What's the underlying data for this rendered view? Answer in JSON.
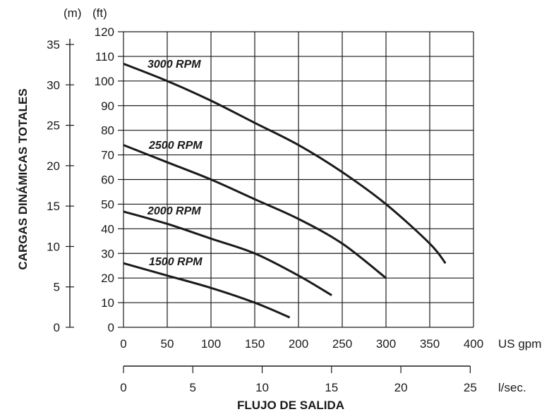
{
  "chart_data": {
    "type": "line",
    "title": "",
    "ylabel": "CARGAS DINÁMICAS TOTALES",
    "xlabel": "FLUJO DE SALIDA",
    "x_unit": "US gpm",
    "x2_unit": "l/sec.",
    "y_unit_ft": "(ft)",
    "y_unit_m": "(m)",
    "xlim": [
      0,
      400
    ],
    "ylim": [
      0,
      120
    ],
    "x_ticks": [
      "0",
      "50",
      "100",
      "150",
      "200",
      "250",
      "300",
      "350",
      "400"
    ],
    "x2_ticks": [
      "0",
      "5",
      "10",
      "15",
      "20",
      "25"
    ],
    "y_ticks_ft": [
      "0",
      "10",
      "20",
      "30",
      "40",
      "50",
      "60",
      "70",
      "80",
      "90",
      "100",
      "110",
      "120"
    ],
    "y_ticks_m": [
      "0",
      "5",
      "10",
      "15",
      "20",
      "25",
      "30",
      "35"
    ],
    "grid": true,
    "series": [
      {
        "name": "3000 RPM",
        "x": [
          0,
          50,
          100,
          150,
          200,
          250,
          300,
          350,
          368
        ],
        "y": [
          107,
          100,
          92,
          83,
          74,
          63,
          50,
          34,
          26
        ]
      },
      {
        "name": "2500 RPM",
        "x": [
          0,
          50,
          100,
          150,
          200,
          250,
          300
        ],
        "y": [
          74,
          67,
          60,
          52,
          44,
          34,
          20
        ]
      },
      {
        "name": "2000 RPM",
        "x": [
          0,
          50,
          100,
          150,
          200,
          238
        ],
        "y": [
          47,
          42,
          36,
          30,
          21,
          13
        ]
      },
      {
        "name": "1500 RPM",
        "x": [
          0,
          50,
          100,
          150,
          190
        ],
        "y": [
          26,
          21,
          16,
          10,
          4
        ]
      }
    ]
  }
}
